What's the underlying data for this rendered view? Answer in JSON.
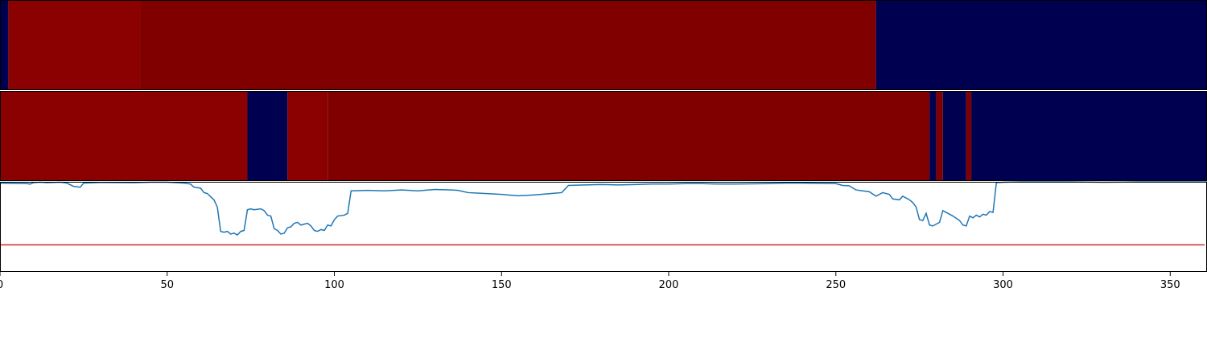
{
  "chart_data": {
    "type": "heatmap",
    "title": "",
    "xlabel": "",
    "ylabel": "",
    "xlim": [
      0,
      361
    ],
    "x_ticks": [
      "0",
      "50",
      "100",
      "150",
      "200",
      "250",
      "300",
      "350"
    ],
    "x_tick_values": [
      0,
      50,
      100,
      150,
      200,
      250,
      300,
      350
    ],
    "colors": {
      "high": "#800000",
      "high_bright": "#8b0000",
      "low": "#000050",
      "line": "#1f77b4",
      "threshold": "#d62728",
      "frame": "#000000"
    },
    "heatmap_rows": [
      {
        "segments": [
          {
            "start": 0,
            "end": 2.5,
            "level": "low"
          },
          {
            "start": 2.5,
            "end": 42,
            "level": "high_bright"
          },
          {
            "start": 42,
            "end": 262,
            "level": "high"
          },
          {
            "start": 262,
            "end": 361,
            "level": "low"
          }
        ]
      },
      {
        "segments": [
          {
            "start": 0,
            "end": 74,
            "level": "high_bright"
          },
          {
            "start": 74,
            "end": 86,
            "level": "low"
          },
          {
            "start": 86,
            "end": 98,
            "level": "high_bright"
          },
          {
            "start": 98,
            "end": 278,
            "level": "high"
          },
          {
            "start": 278,
            "end": 280,
            "level": "low"
          },
          {
            "start": 280,
            "end": 282,
            "level": "high"
          },
          {
            "start": 282,
            "end": 289,
            "level": "low"
          },
          {
            "start": 289,
            "end": 290.5,
            "level": "high"
          },
          {
            "start": 290.5,
            "end": 361,
            "level": "low"
          }
        ]
      }
    ],
    "line_series": {
      "ylim": [
        0,
        1
      ],
      "threshold": 0.3,
      "points": [
        [
          0,
          0.985
        ],
        [
          4,
          0.982
        ],
        [
          8,
          0.98
        ],
        [
          9,
          0.975
        ],
        [
          10,
          0.99
        ],
        [
          12,
          0.995
        ],
        [
          14,
          0.99
        ],
        [
          18,
          0.995
        ],
        [
          20,
          0.985
        ],
        [
          22,
          0.95
        ],
        [
          24,
          0.94
        ],
        [
          25,
          0.985
        ],
        [
          30,
          0.992
        ],
        [
          40,
          0.99
        ],
        [
          45,
          0.995
        ],
        [
          50,
          0.995
        ],
        [
          55,
          0.985
        ],
        [
          57,
          0.975
        ],
        [
          58,
          0.94
        ],
        [
          60,
          0.93
        ],
        [
          61,
          0.88
        ],
        [
          62,
          0.87
        ],
        [
          64,
          0.8
        ],
        [
          65,
          0.72
        ],
        [
          66,
          0.45
        ],
        [
          67,
          0.44
        ],
        [
          68,
          0.45
        ],
        [
          69,
          0.42
        ],
        [
          70,
          0.43
        ],
        [
          71,
          0.41
        ],
        [
          72,
          0.45
        ],
        [
          73,
          0.46
        ],
        [
          74,
          0.69
        ],
        [
          75,
          0.7
        ],
        [
          76,
          0.69
        ],
        [
          78,
          0.7
        ],
        [
          79,
          0.68
        ],
        [
          80,
          0.63
        ],
        [
          81,
          0.62
        ],
        [
          82,
          0.48
        ],
        [
          83,
          0.46
        ],
        [
          84,
          0.42
        ],
        [
          85,
          0.43
        ],
        [
          86,
          0.49
        ],
        [
          87,
          0.5
        ],
        [
          88,
          0.54
        ],
        [
          89,
          0.55
        ],
        [
          90,
          0.52
        ],
        [
          91,
          0.53
        ],
        [
          92,
          0.54
        ],
        [
          93,
          0.51
        ],
        [
          94,
          0.46
        ],
        [
          95,
          0.45
        ],
        [
          96,
          0.47
        ],
        [
          97,
          0.46
        ],
        [
          98,
          0.52
        ],
        [
          99,
          0.51
        ],
        [
          100,
          0.58
        ],
        [
          101,
          0.62
        ],
        [
          103,
          0.63
        ],
        [
          104,
          0.65
        ],
        [
          105,
          0.9
        ],
        [
          110,
          0.905
        ],
        [
          115,
          0.9
        ],
        [
          120,
          0.91
        ],
        [
          125,
          0.9
        ],
        [
          130,
          0.915
        ],
        [
          135,
          0.91
        ],
        [
          137,
          0.905
        ],
        [
          140,
          0.88
        ],
        [
          145,
          0.87
        ],
        [
          150,
          0.86
        ],
        [
          155,
          0.845
        ],
        [
          158,
          0.85
        ],
        [
          160,
          0.855
        ],
        [
          165,
          0.87
        ],
        [
          168,
          0.88
        ],
        [
          170,
          0.96
        ],
        [
          175,
          0.965
        ],
        [
          180,
          0.97
        ],
        [
          185,
          0.965
        ],
        [
          190,
          0.97
        ],
        [
          195,
          0.975
        ],
        [
          200,
          0.975
        ],
        [
          205,
          0.98
        ],
        [
          210,
          0.98
        ],
        [
          215,
          0.975
        ],
        [
          220,
          0.975
        ],
        [
          225,
          0.978
        ],
        [
          230,
          0.98
        ],
        [
          235,
          0.985
        ],
        [
          240,
          0.985
        ],
        [
          245,
          0.982
        ],
        [
          250,
          0.98
        ],
        [
          252,
          0.96
        ],
        [
          254,
          0.955
        ],
        [
          256,
          0.91
        ],
        [
          258,
          0.9
        ],
        [
          260,
          0.89
        ],
        [
          262,
          0.84
        ],
        [
          264,
          0.88
        ],
        [
          266,
          0.86
        ],
        [
          267,
          0.81
        ],
        [
          269,
          0.8
        ],
        [
          270,
          0.84
        ],
        [
          272,
          0.8
        ],
        [
          273,
          0.77
        ],
        [
          274,
          0.72
        ],
        [
          275,
          0.58
        ],
        [
          276,
          0.57
        ],
        [
          277,
          0.65
        ],
        [
          278,
          0.52
        ],
        [
          279,
          0.51
        ],
        [
          280,
          0.53
        ],
        [
          281,
          0.55
        ],
        [
          282,
          0.68
        ],
        [
          283,
          0.66
        ],
        [
          285,
          0.62
        ],
        [
          287,
          0.57
        ],
        [
          288,
          0.52
        ],
        [
          289,
          0.51
        ],
        [
          290,
          0.62
        ],
        [
          291,
          0.6
        ],
        [
          292,
          0.63
        ],
        [
          293,
          0.61
        ],
        [
          294,
          0.64
        ],
        [
          295,
          0.63
        ],
        [
          296,
          0.67
        ],
        [
          297,
          0.66
        ],
        [
          298,
          0.99
        ],
        [
          300,
          0.995
        ],
        [
          305,
          1.0
        ],
        [
          310,
          1.0
        ],
        [
          320,
          1.0
        ],
        [
          330,
          0.995
        ],
        [
          340,
          1.0
        ],
        [
          350,
          1.0
        ],
        [
          361,
          1.0
        ]
      ]
    }
  }
}
